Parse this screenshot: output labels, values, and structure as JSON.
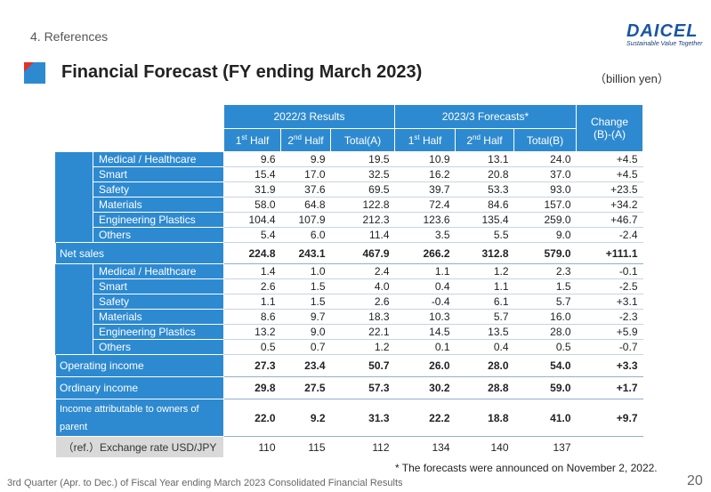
{
  "header": {
    "section": "4. References",
    "brand": "DAICEL",
    "tagline": "Sustainable Value Together",
    "title": "Financial Forecast (FY ending March 2023)",
    "unit": "（billion yen）"
  },
  "table": {
    "group_results": "2022/3 Results",
    "group_forecasts": "2023/3 Forecasts*",
    "change_line1": "Change",
    "change_line2": "(B)-(A)",
    "h1_first": "1",
    "h1_first_sup": "st",
    "h1_half": " Half",
    "h2_first": "2",
    "h2_first_sup": "nd",
    "h2_half": " Half",
    "total_a": "Total(A)",
    "total_b": "Total(B)",
    "sales_rows": [
      {
        "label": "Medical / Healthcare",
        "v": [
          "9.6",
          "9.9",
          "19.5",
          "10.9",
          "13.1",
          "24.0",
          "+4.5"
        ]
      },
      {
        "label": "Smart",
        "v": [
          "15.4",
          "17.0",
          "32.5",
          "16.2",
          "20.8",
          "37.0",
          "+4.5"
        ]
      },
      {
        "label": "Safety",
        "v": [
          "31.9",
          "37.6",
          "69.5",
          "39.7",
          "53.3",
          "93.0",
          "+23.5"
        ]
      },
      {
        "label": "Materials",
        "v": [
          "58.0",
          "64.8",
          "122.8",
          "72.4",
          "84.6",
          "157.0",
          "+34.2"
        ]
      },
      {
        "label": "Engineering Plastics",
        "v": [
          "104.4",
          "107.9",
          "212.3",
          "123.6",
          "135.4",
          "259.0",
          "+46.7"
        ]
      },
      {
        "label": "Others",
        "v": [
          "5.4",
          "6.0",
          "11.4",
          "3.5",
          "5.5",
          "9.0",
          "-2.4"
        ]
      }
    ],
    "net_sales": {
      "label": "Net sales",
      "v": [
        "224.8",
        "243.1",
        "467.9",
        "266.2",
        "312.8",
        "579.0",
        "+111.1"
      ]
    },
    "op_rows": [
      {
        "label": "Medical / Healthcare",
        "v": [
          "1.4",
          "1.0",
          "2.4",
          "1.1",
          "1.2",
          "2.3",
          "-0.1"
        ]
      },
      {
        "label": "Smart",
        "v": [
          "2.6",
          "1.5",
          "4.0",
          "0.4",
          "1.1",
          "1.5",
          "-2.5"
        ]
      },
      {
        "label": "Safety",
        "v": [
          "1.1",
          "1.5",
          "2.6",
          "-0.4",
          "6.1",
          "5.7",
          "+3.1"
        ]
      },
      {
        "label": "Materials",
        "v": [
          "8.6",
          "9.7",
          "18.3",
          "10.3",
          "5.7",
          "16.0",
          "-2.3"
        ]
      },
      {
        "label": "Engineering Plastics",
        "v": [
          "13.2",
          "9.0",
          "22.1",
          "14.5",
          "13.5",
          "28.0",
          "+5.9"
        ]
      },
      {
        "label": "Others",
        "v": [
          "0.5",
          "0.7",
          "1.2",
          "0.1",
          "0.4",
          "0.5",
          "-0.7"
        ]
      }
    ],
    "operating_income": {
      "label": "Operating income",
      "v": [
        "27.3",
        "23.4",
        "50.7",
        "26.0",
        "28.0",
        "54.0",
        "+3.3"
      ]
    },
    "ordinary_income": {
      "label": "Ordinary income",
      "v": [
        "29.8",
        "27.5",
        "57.3",
        "30.2",
        "28.8",
        "59.0",
        "+1.7"
      ]
    },
    "net_income": {
      "label": "Income attributable to owners of parent",
      "v": [
        "22.0",
        "9.2",
        "31.3",
        "22.2",
        "18.8",
        "41.0",
        "+9.7"
      ]
    },
    "exchange": {
      "label": "（ref.）Exchange rate  USD/JPY",
      "v": [
        "110",
        "115",
        "112",
        "134",
        "140",
        "137",
        ""
      ]
    }
  },
  "footnote": "* The forecasts were announced on November 2, 2022.",
  "footer": "3rd Quarter (Apr. to Dec.) of Fiscal Year ending March 2023 Consolidated Financial Results",
  "page_number": "20",
  "colors": {
    "header_blue": "#2e8ad0",
    "brand_blue": "#1a56a6",
    "accent_red": "#e0332a"
  }
}
